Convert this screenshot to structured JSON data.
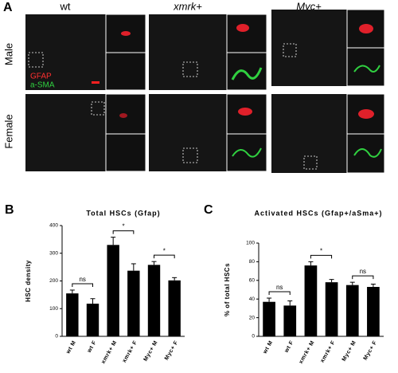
{
  "panel_a": {
    "label": "A",
    "columns": [
      "wt",
      "xmrk+",
      "Myc+"
    ],
    "rows": [
      "Male",
      "Female"
    ],
    "stain_1": "GFAP",
    "stain_2": "a-SMA"
  },
  "chart_data": [
    {
      "type": "bar",
      "label": "B",
      "title": "Total HSCs (Gfap)",
      "y_label": "HSC density",
      "categories": [
        "wt M",
        "wt F",
        "xmrk+ M",
        "xmrk+ F",
        "Myc+ M",
        "Myc+ F"
      ],
      "values": [
        155,
        118,
        330,
        237,
        258,
        202
      ],
      "errors": [
        12,
        18,
        28,
        25,
        12,
        10
      ],
      "color": "#000000",
      "ylim": [
        0,
        400
      ],
      "yticks": [
        0,
        100,
        200,
        300,
        400
      ],
      "annotations": [
        {
          "text": "ns",
          "between": [
            "wt M",
            "wt F"
          ]
        },
        {
          "text": "*",
          "between": [
            "xmrk+ M",
            "xmrk+ F"
          ]
        },
        {
          "text": "*",
          "between": [
            "Myc+ M",
            "Myc+ F"
          ]
        }
      ]
    },
    {
      "type": "bar",
      "label": "C",
      "title": "Activated HSCs (Gfap+/aSma+)",
      "y_label": "% of total HSCs",
      "categories": [
        "wt M",
        "wt F",
        "xmrk+ M",
        "xmrk+ F",
        "Myc+ M",
        "Myc+ F"
      ],
      "values": [
        37,
        33,
        76,
        58,
        55,
        53
      ],
      "errors": [
        4,
        5,
        4,
        3,
        3,
        3
      ],
      "color": "#000000",
      "ylim": [
        0,
        100
      ],
      "yticks": [
        0,
        20,
        40,
        60,
        80,
        100
      ],
      "annotations": [
        {
          "text": "ns",
          "between": [
            "wt M",
            "wt F"
          ]
        },
        {
          "text": "*",
          "between": [
            "xmrk+ M",
            "xmrk+ F"
          ]
        },
        {
          "text": "ns",
          "between": [
            "Myc+ M",
            "Myc+ F"
          ]
        }
      ]
    }
  ]
}
